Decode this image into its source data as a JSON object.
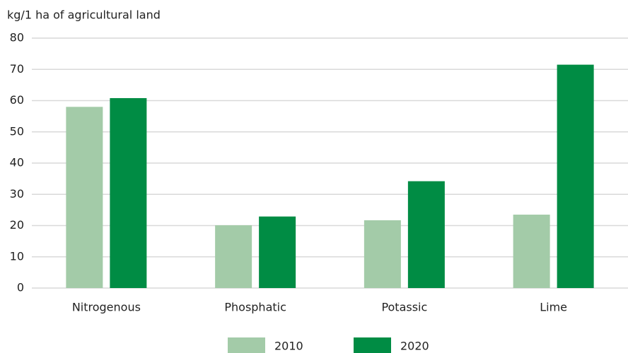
{
  "chart_data": {
    "type": "bar",
    "y_axis_label": "kg/1 ha of agricultural land",
    "categories": [
      "Nitrogenous",
      "Phosphatic",
      "Potassic",
      "Lime"
    ],
    "series": [
      {
        "name": "2010",
        "color": "#a3cba8",
        "values": [
          58,
          20.1,
          21.7,
          23.5
        ]
      },
      {
        "name": "2020",
        "color": "#008c44",
        "values": [
          60.8,
          22.9,
          34.2,
          71.5
        ]
      }
    ],
    "ylim": [
      0,
      80
    ],
    "yticks": [
      0,
      10,
      20,
      30,
      40,
      50,
      60,
      70,
      80
    ],
    "grid": true,
    "legend": "bottom"
  }
}
